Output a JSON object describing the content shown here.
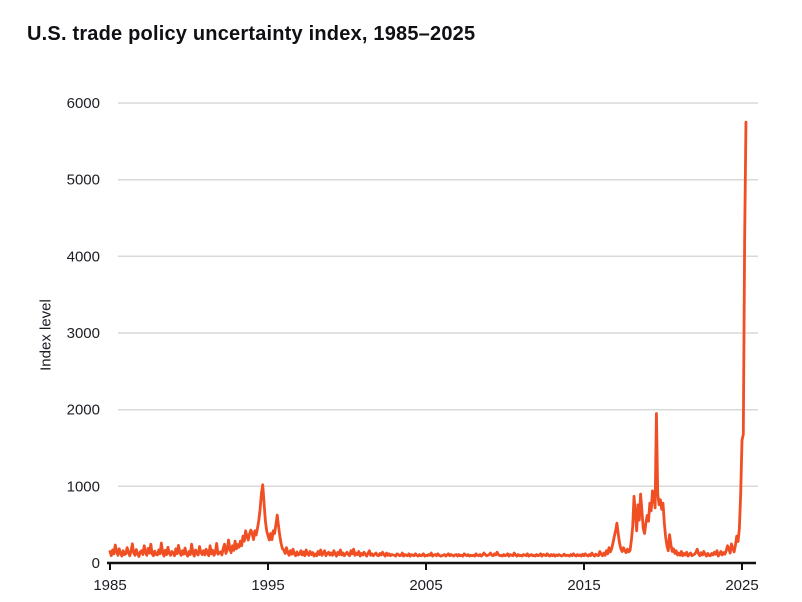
{
  "chart_data": {
    "type": "line",
    "title": "U.S. trade policy uncertainty index, 1985–2025",
    "xlabel": "",
    "ylabel": "Index level",
    "x_ticks": [
      1985,
      1995,
      2005,
      2015,
      2025
    ],
    "y_ticks": [
      0,
      1000,
      2000,
      3000,
      4000,
      5000,
      6000
    ],
    "xlim": [
      1985,
      2025.5
    ],
    "ylim": [
      0,
      6000
    ],
    "grid": "horizontal",
    "legend": "none",
    "line_color": "#F04E23",
    "grid_color": "#d9d9d9",
    "axis_color": "#111111",
    "series_name": "U.S. trade policy uncertainty index",
    "x_start_year": 1985,
    "points_per_year": 12,
    "values": [
      150,
      95,
      170,
      120,
      235,
      150,
      100,
      185,
      130,
      90,
      160,
      110,
      120,
      200,
      140,
      95,
      160,
      250,
      130,
      100,
      175,
      120,
      85,
      145,
      160,
      110,
      225,
      140,
      100,
      190,
      130,
      245,
      120,
      95,
      155,
      110,
      105,
      170,
      120,
      260,
      140,
      90,
      165,
      110,
      205,
      130,
      100,
      150,
      130,
      95,
      185,
      120,
      230,
      140,
      100,
      160,
      115,
      195,
      120,
      90,
      150,
      110,
      245,
      130,
      90,
      170,
      120,
      105,
      215,
      140,
      110,
      160,
      105,
      180,
      130,
      95,
      225,
      120,
      165,
      100,
      140,
      255,
      115,
      130,
      145,
      105,
      190,
      245,
      125,
      165,
      300,
      185,
      135,
      225,
      165,
      285,
      185,
      240,
      205,
      285,
      225,
      350,
      285,
      420,
      350,
      300,
      380,
      430,
      380,
      305,
      420,
      365,
      450,
      555,
      700,
      905,
      1020,
      780,
      550,
      420,
      355,
      300,
      385,
      305,
      420,
      385,
      500,
      625,
      480,
      350,
      250,
      185,
      170,
      125,
      200,
      140,
      100,
      160,
      115,
      180,
      120,
      95,
      145,
      105,
      115,
      160,
      105,
      145,
      95,
      170,
      120,
      100,
      150,
      110,
      135,
      90,
      120,
      95,
      150,
      110,
      170,
      100,
      130,
      160,
      95,
      125,
      140,
      105,
      130,
      100,
      160,
      120,
      90,
      140,
      110,
      170,
      105,
      130,
      95,
      120,
      140,
      110,
      95,
      160,
      120,
      180,
      100,
      130,
      110,
      150,
      90,
      125,
      105,
      140,
      110,
      90,
      130,
      160,
      100,
      120,
      95,
      115,
      130,
      100,
      95,
      125,
      105,
      140,
      110,
      90,
      130,
      100,
      120,
      95,
      110,
      105,
      100,
      90,
      120,
      110,
      95,
      100,
      130,
      90,
      110,
      100,
      95,
      120,
      90,
      110,
      100,
      95,
      120,
      100,
      90,
      110,
      95,
      100,
      120,
      90,
      100,
      95,
      110,
      100,
      130,
      90,
      105,
      110,
      95,
      120,
      100,
      90,
      95,
      100,
      110,
      90,
      105,
      120,
      95,
      110,
      100,
      90,
      105,
      110,
      90,
      110,
      95,
      100,
      90,
      120,
      105,
      95,
      110,
      90,
      100,
      95,
      100,
      90,
      120,
      100,
      95,
      110,
      90,
      105,
      130,
      110,
      95,
      100,
      110,
      130,
      100,
      95,
      120,
      105,
      140,
      110,
      95,
      100,
      90,
      110,
      95,
      100,
      120,
      90,
      110,
      100,
      95,
      130,
      105,
      90,
      110,
      95,
      100,
      90,
      110,
      105,
      95,
      120,
      90,
      100,
      110,
      95,
      100,
      90,
      110,
      95,
      100,
      120,
      90,
      110,
      105,
      95,
      120,
      100,
      90,
      110,
      95,
      110,
      90,
      105,
      95,
      110,
      100,
      90,
      100,
      115,
      95,
      100,
      100,
      90,
      110,
      95,
      120,
      100,
      90,
      110,
      95,
      105,
      90,
      115,
      95,
      120,
      100,
      90,
      110,
      95,
      130,
      105,
      90,
      115,
      100,
      95,
      150,
      115,
      95,
      130,
      100,
      160,
      120,
      200,
      145,
      185,
      260,
      345,
      420,
      520,
      380,
      260,
      185,
      150,
      200,
      160,
      135,
      180,
      145,
      165,
      300,
      480,
      870,
      640,
      420,
      760,
      560,
      900,
      680,
      450,
      385,
      520,
      620,
      545,
      780,
      680,
      940,
      860,
      720,
      1950,
      905,
      760,
      825,
      700,
      780,
      520,
      340,
      225,
      160,
      370,
      240,
      150,
      185,
      125,
      160,
      105,
      130,
      100,
      150,
      95,
      125,
      105,
      140,
      90,
      115,
      130,
      95,
      105,
      115,
      140,
      180,
      120,
      95,
      135,
      105,
      150,
      115,
      90,
      125,
      100,
      95,
      125,
      105,
      140,
      115,
      160,
      90,
      120,
      150,
      105,
      135,
      115,
      160,
      225,
      185,
      130,
      250,
      190,
      145,
      230,
      350,
      280,
      450,
      900,
      1600,
      1680,
      4200,
      5750
    ]
  }
}
